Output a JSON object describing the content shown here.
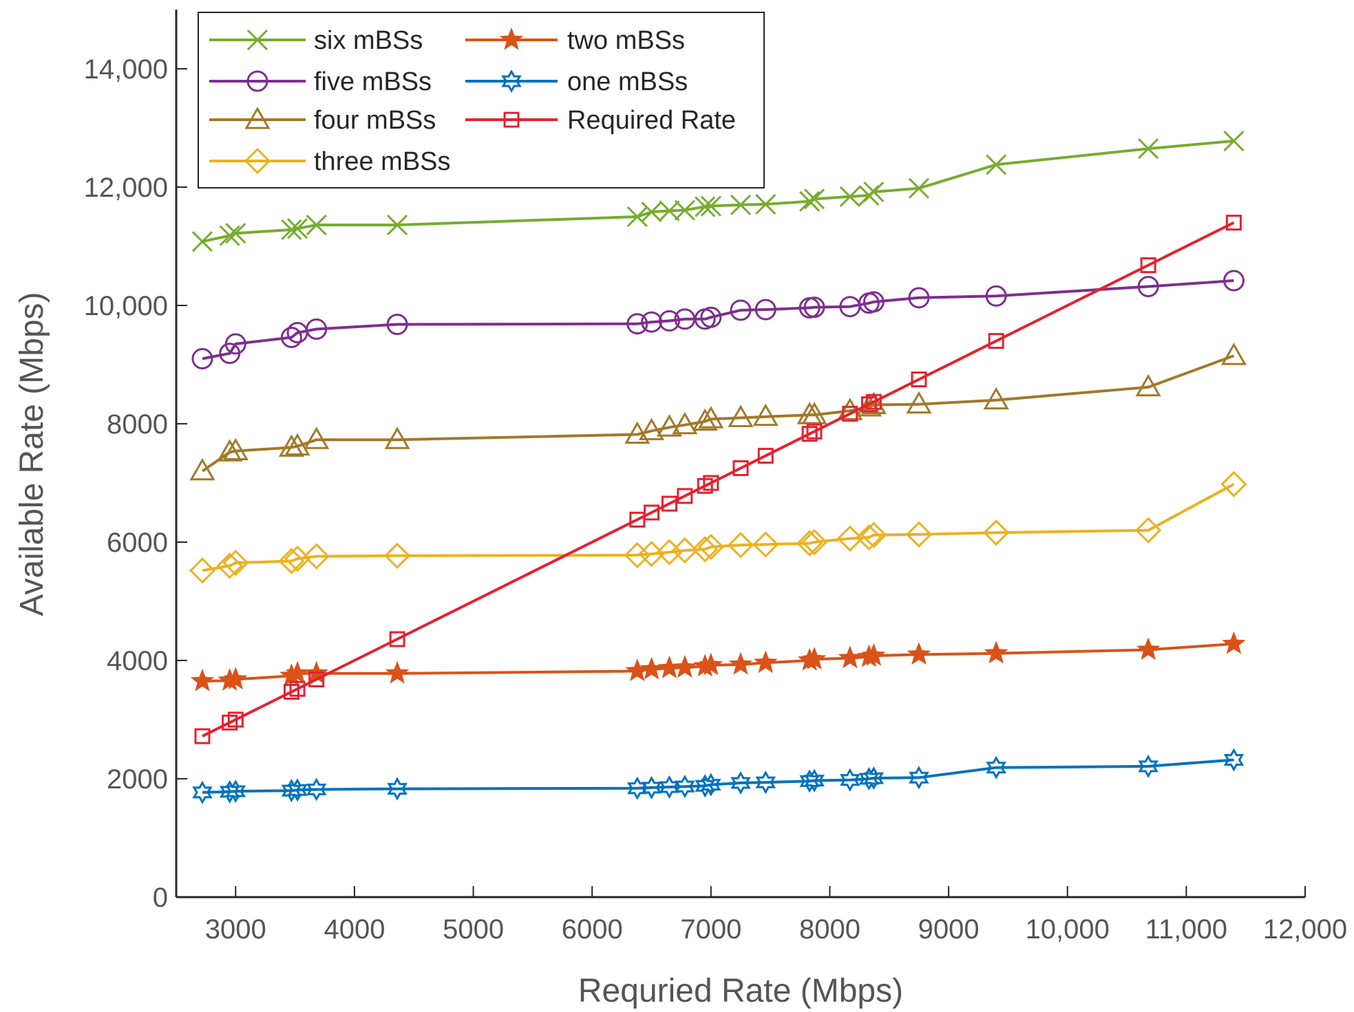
{
  "chart_data": {
    "type": "line",
    "title": "",
    "xlabel": "Requried Rate (Mbps)",
    "ylabel": "Available Rate (Mbps)",
    "xlim": [
      2500,
      12000
    ],
    "ylim": [
      0,
      15000
    ],
    "xticks": [
      3000,
      4000,
      5000,
      6000,
      7000,
      8000,
      9000,
      10000,
      11000,
      12000
    ],
    "xtick_labels": [
      "3000",
      "4000",
      "5000",
      "6000",
      "7000",
      "8000",
      "9000",
      "10,000",
      "11,000",
      "12,000"
    ],
    "yticks": [
      0,
      2000,
      4000,
      6000,
      8000,
      10000,
      12000,
      14000
    ],
    "ytick_labels": [
      "0",
      "2000",
      "4000",
      "6000",
      "8000",
      "10,000",
      "12,000",
      "14,000"
    ],
    "grid": false,
    "legend_position": "top-left",
    "x": [
      2720,
      2950,
      3000,
      3470,
      3520,
      3680,
      4360,
      6380,
      6500,
      6650,
      6780,
      6950,
      7000,
      7250,
      7460,
      7830,
      7870,
      8170,
      8330,
      8370,
      8750,
      9400,
      10680,
      11400
    ],
    "series": [
      {
        "name": "six mBSs",
        "color": "#77AC30",
        "marker": "x",
        "values": [
          11080,
          11180,
          11220,
          11280,
          11300,
          11360,
          11360,
          11500,
          11580,
          11600,
          11610,
          11670,
          11680,
          11700,
          11710,
          11760,
          11800,
          11840,
          11860,
          11920,
          11980,
          12380,
          12650,
          12780
        ]
      },
      {
        "name": "five mBSs",
        "color": "#7E2F8E",
        "marker": "circle",
        "values": [
          9100,
          9190,
          9350,
          9460,
          9540,
          9600,
          9680,
          9690,
          9720,
          9740,
          9770,
          9770,
          9800,
          9920,
          9930,
          9960,
          9970,
          9980,
          10040,
          10060,
          10130,
          10160,
          10320,
          10420
        ]
      },
      {
        "name": "four mBSs",
        "color": "#A2792A",
        "marker": "triangle",
        "values": [
          7200,
          7520,
          7540,
          7600,
          7620,
          7730,
          7730,
          7820,
          7880,
          7940,
          7980,
          8040,
          8080,
          8100,
          8120,
          8150,
          8150,
          8220,
          8280,
          8320,
          8330,
          8400,
          8620,
          9150
        ]
      },
      {
        "name": "three mBSs",
        "color": "#EDB120",
        "marker": "diamond",
        "values": [
          5520,
          5600,
          5650,
          5680,
          5720,
          5760,
          5770,
          5780,
          5800,
          5830,
          5860,
          5880,
          5920,
          5950,
          5960,
          5980,
          6000,
          6060,
          6080,
          6120,
          6130,
          6160,
          6200,
          6980
        ]
      },
      {
        "name": "two mBSs",
        "color": "#D95319",
        "marker": "star",
        "values": [
          3650,
          3660,
          3680,
          3740,
          3780,
          3780,
          3780,
          3820,
          3850,
          3870,
          3880,
          3900,
          3920,
          3930,
          3960,
          4000,
          4020,
          4040,
          4060,
          4080,
          4100,
          4120,
          4180,
          4280
        ]
      },
      {
        "name": "one mBSs",
        "color": "#0072BD",
        "marker": "hexagram",
        "values": [
          1770,
          1780,
          1790,
          1800,
          1810,
          1820,
          1830,
          1840,
          1850,
          1860,
          1870,
          1880,
          1900,
          1930,
          1940,
          1960,
          1970,
          1980,
          2000,
          2010,
          2020,
          2190,
          2210,
          2320
        ]
      },
      {
        "name": "Required Rate",
        "color": "#E6212E",
        "marker": "square",
        "values": [
          2720,
          2950,
          3000,
          3470,
          3520,
          3680,
          4360,
          6380,
          6500,
          6650,
          6780,
          6950,
          7000,
          7250,
          7460,
          7830,
          7870,
          8170,
          8330,
          8370,
          8750,
          9400,
          10680,
          11400
        ]
      }
    ],
    "legend_layout": {
      "left_column": [
        "six mBSs",
        "five mBSs",
        "four mBSs",
        "three mBSs"
      ],
      "right_column": [
        "two mBSs",
        "one mBSs",
        "Required Rate"
      ]
    }
  }
}
